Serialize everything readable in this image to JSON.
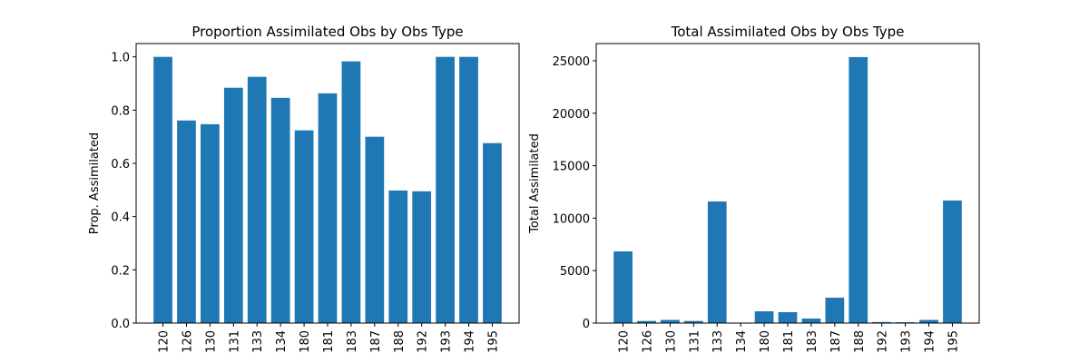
{
  "chart_data": [
    {
      "type": "bar",
      "title": "Proportion Assimilated Obs by Obs Type",
      "ylabel": "Prop. Assimilated",
      "categories": [
        "120",
        "126",
        "130",
        "131",
        "133",
        "134",
        "180",
        "181",
        "183",
        "187",
        "188",
        "192",
        "193",
        "194",
        "195"
      ],
      "values": [
        1.0,
        0.761,
        0.747,
        0.884,
        0.925,
        0.846,
        0.724,
        0.863,
        0.983,
        0.7,
        0.498,
        0.495,
        1.0,
        1.0,
        0.676
      ],
      "color": "#1f77b4",
      "ylim": [
        0,
        1.05
      ],
      "yticks": [
        {
          "value": 0,
          "label": "0.0"
        },
        0.2,
        0.4,
        0.6,
        0.8,
        {
          "value": 1,
          "label": "1.0"
        }
      ]
    },
    {
      "type": "bar",
      "title": "Total Assimilated Obs by Obs Type",
      "ylabel": "Total Assimilated",
      "categories": [
        "120",
        "126",
        "130",
        "131",
        "133",
        "134",
        "180",
        "181",
        "183",
        "187",
        "188",
        "192",
        "193",
        "194",
        "195"
      ],
      "values": [
        6830,
        200,
        300,
        200,
        11590,
        20,
        1120,
        1040,
        430,
        2420,
        25350,
        100,
        80,
        300,
        11680
      ],
      "color": "#1f77b4",
      "ylim": [
        0,
        26640
      ],
      "yticks": [
        0,
        5000,
        10000,
        15000,
        20000,
        25000
      ]
    }
  ]
}
